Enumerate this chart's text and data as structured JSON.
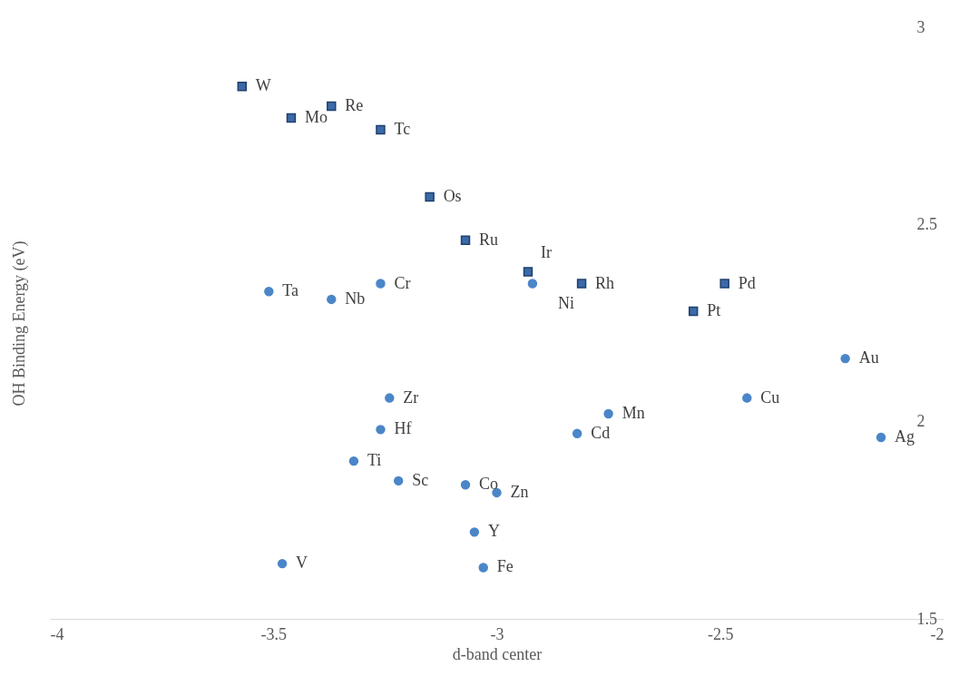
{
  "chart_data": {
    "type": "scatter",
    "xlabel": "d-band center",
    "ylabel": "OH Binding Energy (eV)",
    "xlim": [
      -4,
      -2
    ],
    "xticks": [
      -4,
      -3.5,
      -3,
      -2.5,
      -2
    ],
    "ylim": [
      1.5,
      3
    ],
    "yticks": [
      1.5,
      2,
      2.5,
      3
    ],
    "grid": false,
    "legend": false,
    "series": [
      {
        "color": "#3b6aa8",
        "marker": "square",
        "x": [
          -3.57,
          -3.46,
          -3.37,
          -3.26,
          -3.15,
          -3.07,
          -2.93,
          -2.81,
          -2.49,
          -2.56
        ],
        "values": [
          2.85,
          2.77,
          2.8,
          2.74,
          2.57,
          2.46,
          2.38,
          2.35,
          2.35,
          2.28
        ]
      },
      {
        "color": "#4a86c8",
        "marker": "circle",
        "x": [
          -3.51,
          -3.37,
          -3.26,
          -2.92,
          -2.22,
          -3.24,
          -2.44,
          -3.26,
          -2.75,
          -2.82,
          -2.14,
          -3.32,
          -3.22,
          -3.07,
          -3,
          -3.05,
          -3.48,
          -3.03
        ],
        "values": [
          2.33,
          2.31,
          2.35,
          2.35,
          2.16,
          2.06,
          2.06,
          1.98,
          2.02,
          1.97,
          1.96,
          1.9,
          1.85,
          1.84,
          1.82,
          1.72,
          1.64,
          1.63
        ]
      }
    ],
    "annotations": [
      {
        "text": "W",
        "x": -3.57,
        "y": 2.85
      },
      {
        "text": "Mo",
        "x": -3.46,
        "y": 2.77
      },
      {
        "text": "Re",
        "x": -3.37,
        "y": 2.8
      },
      {
        "text": "Tc",
        "x": -3.26,
        "y": 2.74
      },
      {
        "text": "Os",
        "x": -3.15,
        "y": 2.57
      },
      {
        "text": "Ru",
        "x": -3.07,
        "y": 2.46
      },
      {
        "text": "Ir",
        "x": -2.93,
        "y": 2.38
      },
      {
        "text": "Rh",
        "x": -2.81,
        "y": 2.35
      },
      {
        "text": "Pd",
        "x": -2.49,
        "y": 2.35
      },
      {
        "text": "Pt",
        "x": -2.56,
        "y": 2.28
      },
      {
        "text": "Ta",
        "x": -3.51,
        "y": 2.33
      },
      {
        "text": "Nb",
        "x": -3.37,
        "y": 2.31
      },
      {
        "text": "Cr",
        "x": -3.26,
        "y": 2.35
      },
      {
        "text": "Ni",
        "x": -2.92,
        "y": 2.35
      },
      {
        "text": "Au",
        "x": -2.22,
        "y": 2.16
      },
      {
        "text": "Zr",
        "x": -3.24,
        "y": 2.06
      },
      {
        "text": "Cu",
        "x": -2.44,
        "y": 2.06
      },
      {
        "text": "Hf",
        "x": -3.26,
        "y": 1.98
      },
      {
        "text": "Mn",
        "x": -2.75,
        "y": 2.02
      },
      {
        "text": "Cd",
        "x": -2.82,
        "y": 1.97
      },
      {
        "text": "Ag",
        "x": -2.14,
        "y": 1.96
      },
      {
        "text": "Ti",
        "x": -3.32,
        "y": 1.9
      },
      {
        "text": "Sc",
        "x": -3.22,
        "y": 1.85
      },
      {
        "text": "Co",
        "x": -3.07,
        "y": 1.84
      },
      {
        "text": "Zn",
        "x": -3,
        "y": 1.82
      },
      {
        "text": "Y",
        "x": -3.05,
        "y": 1.72
      },
      {
        "text": "V",
        "x": -3.48,
        "y": 1.64
      },
      {
        "text": "Fe",
        "x": -3.03,
        "y": 1.63
      }
    ]
  }
}
